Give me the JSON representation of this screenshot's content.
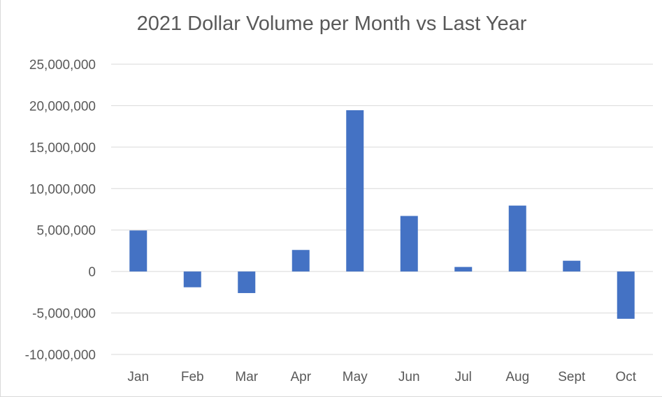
{
  "chart_data": {
    "type": "bar",
    "title": "2021 Dollar Volume per Month vs Last Year",
    "categories": [
      "Jan",
      "Feb",
      "Mar",
      "Apr",
      "May",
      "Jun",
      "Jul",
      "Aug",
      "Sept",
      "Oct"
    ],
    "values": [
      4950000,
      -1900000,
      -2600000,
      2600000,
      19450000,
      6700000,
      550000,
      7950000,
      1300000,
      -5700000
    ],
    "yticks": [
      "25,000,000",
      "20,000,000",
      "15,000,000",
      "10,000,000",
      "5,000,000",
      "0",
      "-5,000,000",
      "-10,000,000"
    ],
    "ylim": [
      -10000000,
      25000000
    ],
    "grid": true,
    "legend": "none",
    "bar_color": "#4472c4",
    "grid_color": "#d9d9d9"
  }
}
